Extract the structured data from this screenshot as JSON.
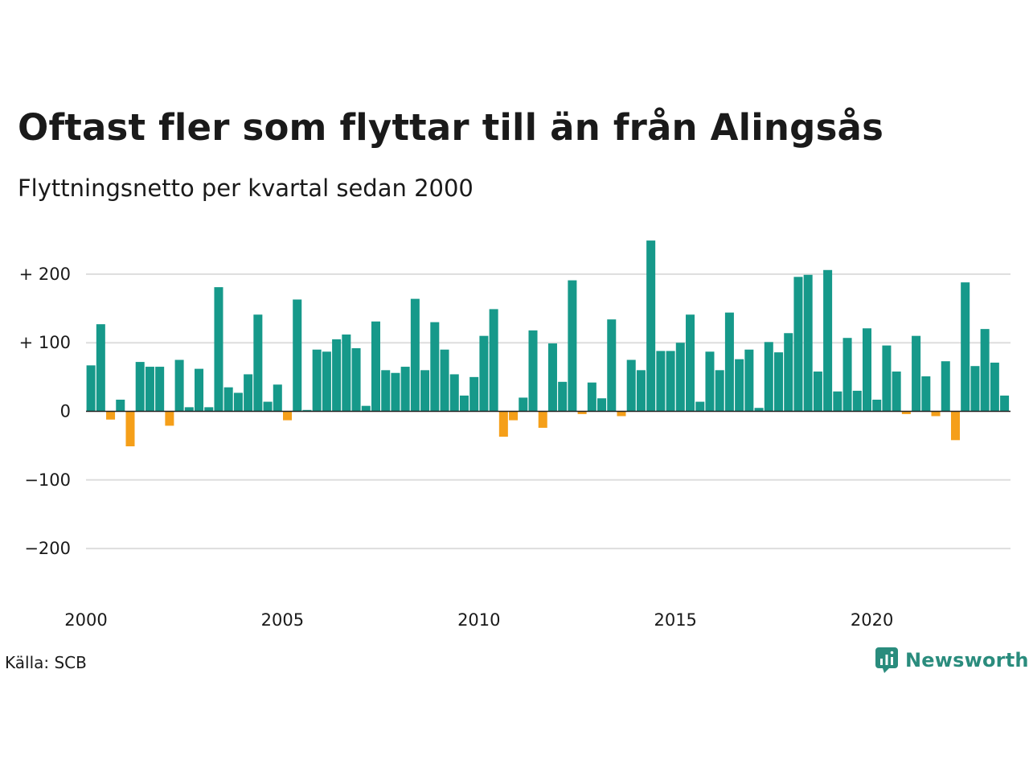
{
  "chart_data": {
    "type": "bar",
    "title": "Oftast fler som flyttar till än från Alingsås",
    "subtitle": "Flyttningsnetto per kvartal sedan 2000",
    "ylim": [
      -250,
      260
    ],
    "y_ticks": [
      -200,
      -100,
      0,
      100,
      200
    ],
    "y_tick_labels": [
      "−200",
      "−100",
      "0",
      "+ 100",
      "+ 200"
    ],
    "x_ticks": [
      2000,
      2005,
      2010,
      2015,
      2020
    ],
    "x_tick_labels": [
      "2000",
      "2005",
      "2010",
      "2015",
      "2020"
    ],
    "grid": true,
    "colors": {
      "positive": "#16998a",
      "negative": "#f59f19",
      "grid": "#dddddd",
      "zero": "#222222"
    },
    "series": [
      {
        "values": [
          {
            "x": "2000 K1",
            "y": 67
          },
          {
            "x": "2000 K2",
            "y": 127
          },
          {
            "x": "2000 K3",
            "y": -12
          },
          {
            "x": "2000 K4",
            "y": 17
          },
          {
            "x": "2001 K1",
            "y": -51
          },
          {
            "x": "2001 K2",
            "y": 72
          },
          {
            "x": "2001 K3",
            "y": 65
          },
          {
            "x": "2001 K4",
            "y": 65
          },
          {
            "x": "2002 K1",
            "y": -21
          },
          {
            "x": "2002 K2",
            "y": 75
          },
          {
            "x": "2002 K3",
            "y": 6
          },
          {
            "x": "2002 K4",
            "y": 62
          },
          {
            "x": "2003 K1",
            "y": 6
          },
          {
            "x": "2003 K2",
            "y": 181
          },
          {
            "x": "2003 K3",
            "y": 35
          },
          {
            "x": "2003 K4",
            "y": 27
          },
          {
            "x": "2004 K1",
            "y": 54
          },
          {
            "x": "2004 K2",
            "y": 141
          },
          {
            "x": "2004 K3",
            "y": 14
          },
          {
            "x": "2004 K4",
            "y": 39
          },
          {
            "x": "2005 K1",
            "y": -13
          },
          {
            "x": "2005 K2",
            "y": 163
          },
          {
            "x": "2005 K3",
            "y": 2
          },
          {
            "x": "2005 K4",
            "y": 90
          },
          {
            "x": "2006 K1",
            "y": 87
          },
          {
            "x": "2006 K2",
            "y": 105
          },
          {
            "x": "2006 K3",
            "y": 112
          },
          {
            "x": "2006 K4",
            "y": 92
          },
          {
            "x": "2007 K1",
            "y": 8
          },
          {
            "x": "2007 K2",
            "y": 131
          },
          {
            "x": "2007 K3",
            "y": 60
          },
          {
            "x": "2007 K4",
            "y": 56
          },
          {
            "x": "2008 K1",
            "y": 65
          },
          {
            "x": "2008 K2",
            "y": 164
          },
          {
            "x": "2008 K3",
            "y": 60
          },
          {
            "x": "2008 K4",
            "y": 130
          },
          {
            "x": "2009 K1",
            "y": 90
          },
          {
            "x": "2009 K2",
            "y": 54
          },
          {
            "x": "2009 K3",
            "y": 23
          },
          {
            "x": "2009 K4",
            "y": 50
          },
          {
            "x": "2010 K1",
            "y": 110
          },
          {
            "x": "2010 K2",
            "y": 149
          },
          {
            "x": "2010 K3",
            "y": -37
          },
          {
            "x": "2010 K4",
            "y": -13
          },
          {
            "x": "2011 K1",
            "y": 20
          },
          {
            "x": "2011 K2",
            "y": 118
          },
          {
            "x": "2011 K3",
            "y": -24
          },
          {
            "x": "2011 K4",
            "y": 99
          },
          {
            "x": "2012 K1",
            "y": 43
          },
          {
            "x": "2012 K2",
            "y": 191
          },
          {
            "x": "2012 K3",
            "y": -4
          },
          {
            "x": "2012 K4",
            "y": 42
          },
          {
            "x": "2013 K1",
            "y": 19
          },
          {
            "x": "2013 K2",
            "y": 134
          },
          {
            "x": "2013 K3",
            "y": -7
          },
          {
            "x": "2013 K4",
            "y": 75
          },
          {
            "x": "2014 K1",
            "y": 60
          },
          {
            "x": "2014 K2",
            "y": 249
          },
          {
            "x": "2014 K3",
            "y": 88
          },
          {
            "x": "2014 K4",
            "y": 88
          },
          {
            "x": "2015 K1",
            "y": 100
          },
          {
            "x": "2015 K2",
            "y": 141
          },
          {
            "x": "2015 K3",
            "y": 14
          },
          {
            "x": "2015 K4",
            "y": 87
          },
          {
            "x": "2016 K1",
            "y": 60
          },
          {
            "x": "2016 K2",
            "y": 144
          },
          {
            "x": "2016 K3",
            "y": 76
          },
          {
            "x": "2016 K4",
            "y": 90
          },
          {
            "x": "2017 K1",
            "y": 5
          },
          {
            "x": "2017 K2",
            "y": 101
          },
          {
            "x": "2017 K3",
            "y": 86
          },
          {
            "x": "2017 K4",
            "y": 114
          },
          {
            "x": "2018 K1",
            "y": 196
          },
          {
            "x": "2018 K2",
            "y": 199
          },
          {
            "x": "2018 K3",
            "y": 58
          },
          {
            "x": "2018 K4",
            "y": 206
          },
          {
            "x": "2019 K1",
            "y": 29
          },
          {
            "x": "2019 K2",
            "y": 107
          },
          {
            "x": "2019 K3",
            "y": 30
          },
          {
            "x": "2019 K4",
            "y": 121
          },
          {
            "x": "2020 K1",
            "y": 17
          },
          {
            "x": "2020 K2",
            "y": 96
          },
          {
            "x": "2020 K3",
            "y": 58
          },
          {
            "x": "2020 K4",
            "y": -4
          },
          {
            "x": "2021 K1",
            "y": 110
          },
          {
            "x": "2021 K2",
            "y": 51
          },
          {
            "x": "2021 K3",
            "y": -7
          },
          {
            "x": "2021 K4",
            "y": 73
          },
          {
            "x": "2022 K1",
            "y": -42
          },
          {
            "x": "2022 K2",
            "y": 188
          },
          {
            "x": "2022 K3",
            "y": 66
          },
          {
            "x": "2022 K4",
            "y": 120
          },
          {
            "x": "2023 K1",
            "y": 71
          },
          {
            "x": "2023 K2",
            "y": 23
          }
        ]
      }
    ]
  },
  "footer": {
    "source": "Källa: SCB",
    "brand": "Newsworthy",
    "brand_icon": "newsworthy-logo-icon",
    "brand_color": "#2a8c7d"
  }
}
